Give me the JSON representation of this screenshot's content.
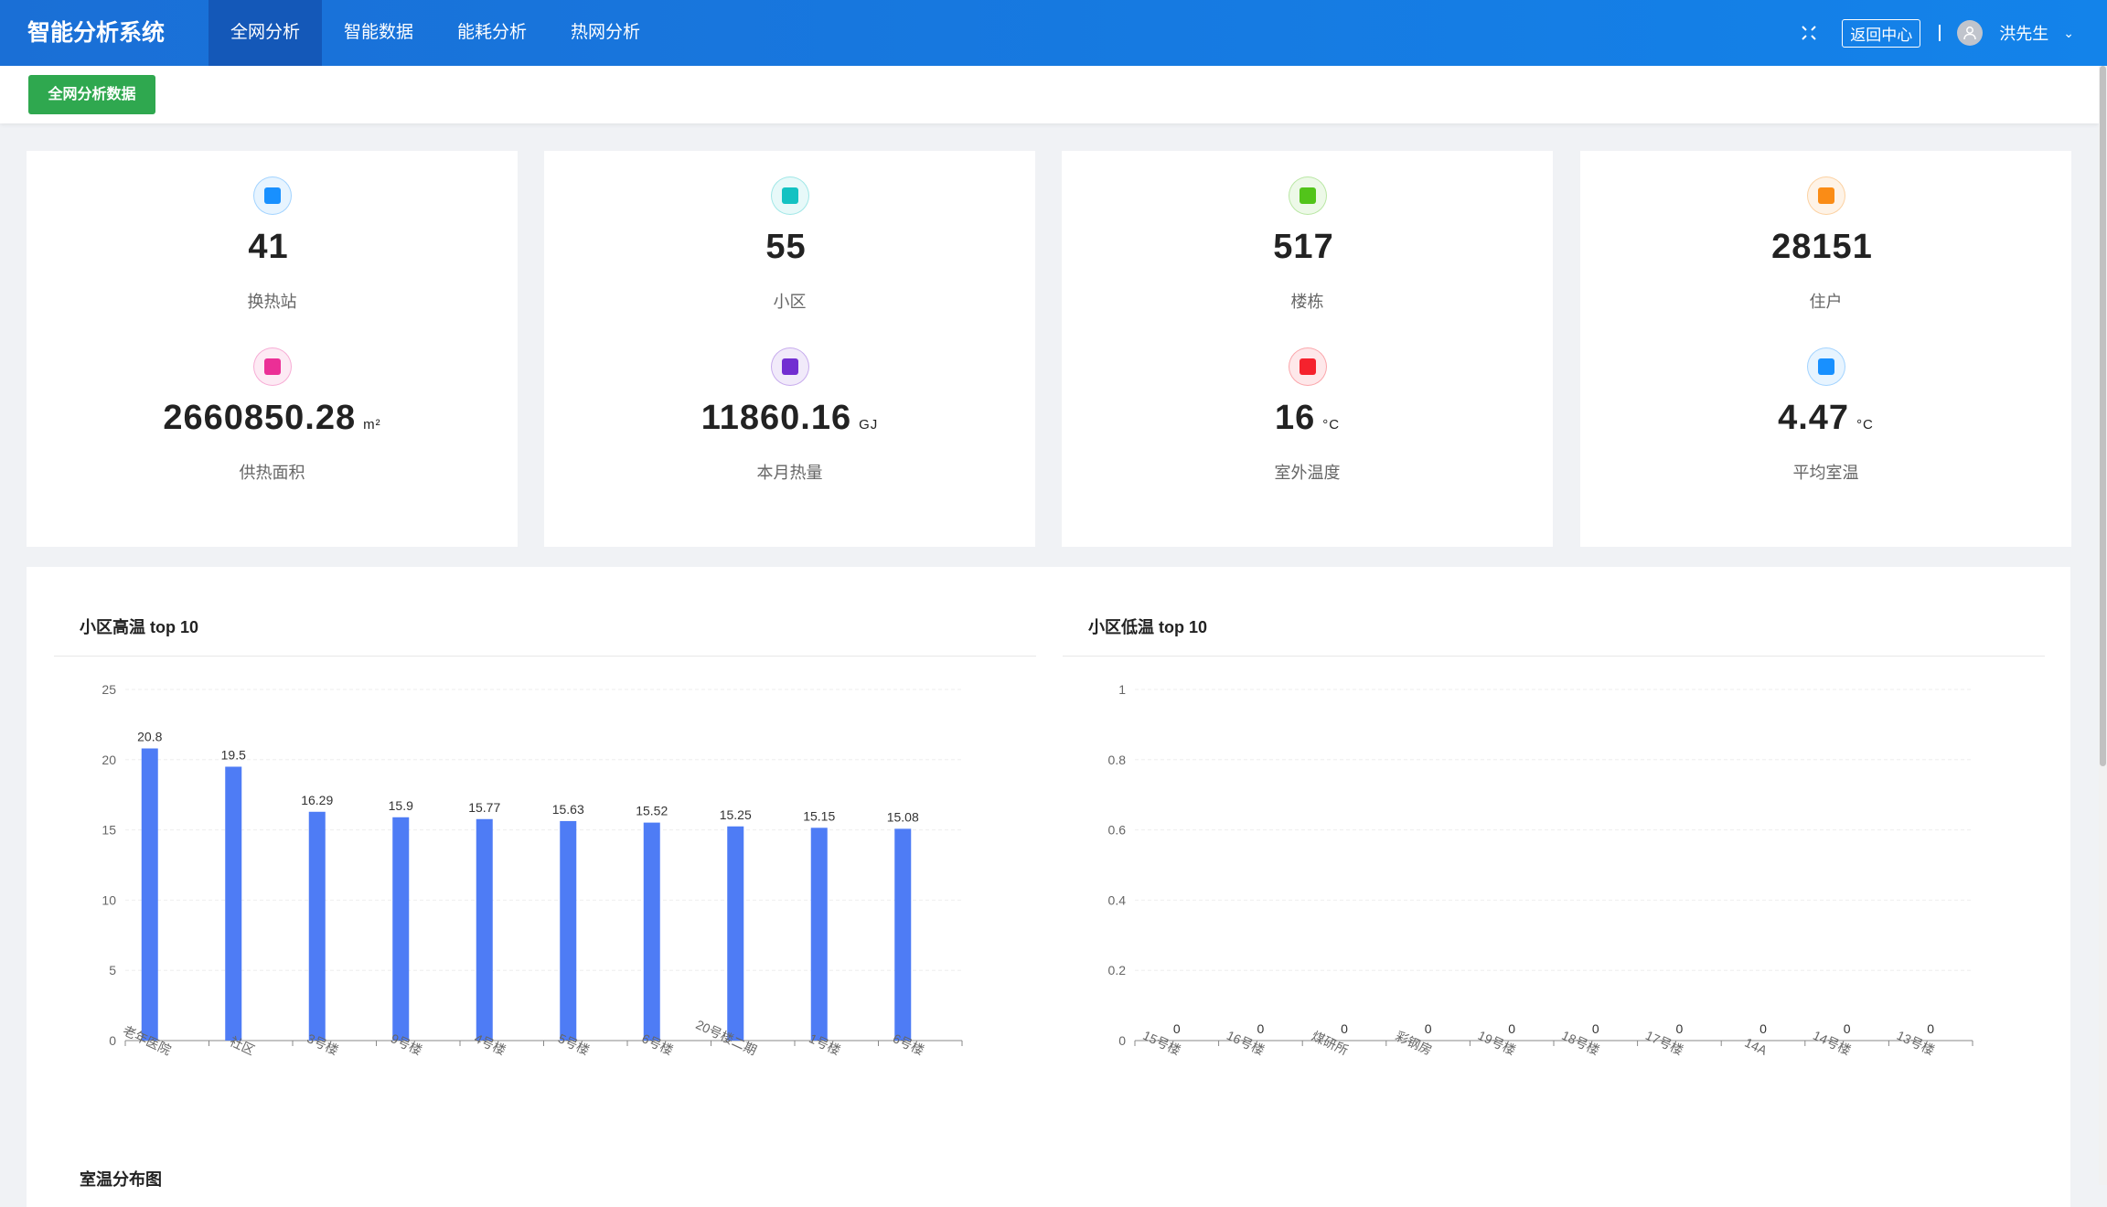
{
  "header": {
    "title": "智能分析系统",
    "nav": [
      {
        "label": "全网分析",
        "active": true
      },
      {
        "label": "智能数据"
      },
      {
        "label": "能耗分析"
      },
      {
        "label": "热网分析"
      }
    ],
    "back_label": "返回中心",
    "user": "洪先生"
  },
  "subbar": {
    "button_label": "全网分析数据"
  },
  "stats": [
    {
      "value": "41",
      "unit": "",
      "label": "换热站",
      "icon": "bank-icon",
      "color": "#1890ff"
    },
    {
      "value": "55",
      "unit": "",
      "label": "小区",
      "icon": "home-icon",
      "color": "#13c2c2"
    },
    {
      "value": "517",
      "unit": "",
      "label": "楼栋",
      "icon": "building-icon",
      "color": "#52c41a"
    },
    {
      "value": "28151",
      "unit": "",
      "label": "住户",
      "icon": "grid-icon",
      "color": "#fa8c16"
    },
    {
      "value": "2660850.28",
      "unit": "m²",
      "label": "供热面积",
      "icon": "area-icon",
      "color": "#eb2f96"
    },
    {
      "value": "11860.16",
      "unit": "GJ",
      "label": "本月热量",
      "icon": "heat-icon",
      "color": "#722ed1"
    },
    {
      "value": "16",
      "unit": "°C",
      "label": "室外温度",
      "icon": "gauge-icon",
      "color": "#f5222d"
    },
    {
      "value": "4.47",
      "unit": "°C",
      "label": "平均室温",
      "icon": "thermometer-icon",
      "color": "#1890ff"
    }
  ],
  "chart_data": [
    {
      "type": "bar",
      "title": "小区高温 top 10",
      "categories": [
        "老年医院",
        "社区",
        "3号楼",
        "9号楼",
        "4号楼",
        "5号楼",
        "6号楼",
        "20号楼二期",
        "1号楼",
        "6号楼"
      ],
      "values": [
        20.8,
        19.5,
        16.29,
        15.9,
        15.77,
        15.63,
        15.52,
        15.25,
        15.15,
        15.08
      ],
      "yticks": [
        "0",
        "5",
        "10",
        "15",
        "20",
        "25"
      ],
      "ylim": [
        0,
        25
      ],
      "grid": true,
      "color": "#4e7cf5"
    },
    {
      "type": "bar",
      "title": "小区低温 top 10",
      "categories": [
        "15号楼",
        "16号楼",
        "煤研所",
        "彩钢房",
        "19号楼",
        "18号楼",
        "17号楼",
        "14A",
        "14号楼",
        "13号楼"
      ],
      "values": [
        0,
        0,
        0,
        0,
        0,
        0,
        0,
        0,
        0,
        0
      ],
      "yticks": [
        "0",
        "0.2",
        "0.4",
        "0.6",
        "0.8",
        "1"
      ],
      "ylim": [
        0,
        1
      ],
      "grid": true,
      "color": "#4e7cf5"
    }
  ],
  "bottom": {
    "title": "室温分布图"
  }
}
